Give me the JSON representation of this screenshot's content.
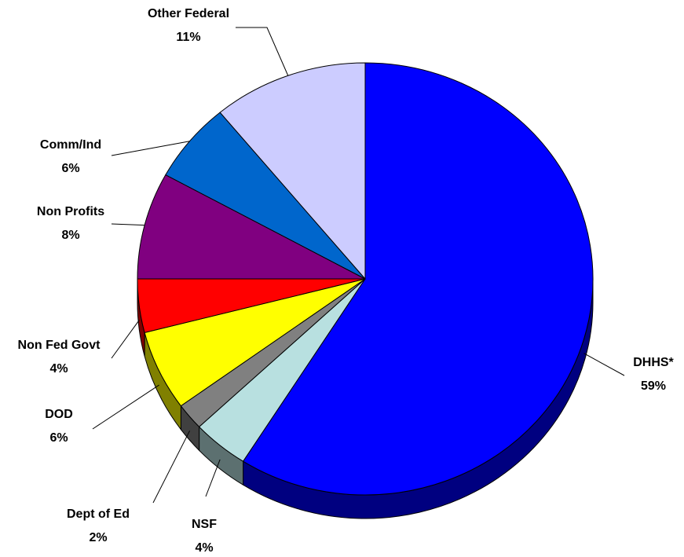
{
  "chart_data": {
    "type": "pie",
    "categories": [
      "DHHS*",
      "NSF",
      "Dept of Ed",
      "DOD",
      "Non Fed Govt",
      "Non Profits",
      "Comm/Ind",
      "Other Federal"
    ],
    "values": [
      59,
      4,
      2,
      6,
      4,
      8,
      6,
      11
    ],
    "value_labels": [
      "59%",
      "4%",
      "2%",
      "6%",
      "4%",
      "8%",
      "6%",
      "11%"
    ],
    "colors": [
      "#0000ff",
      "#b8e0e0",
      "#808080",
      "#ffff00",
      "#ff0000",
      "#800080",
      "#0066cc",
      "#ccccff"
    ]
  }
}
